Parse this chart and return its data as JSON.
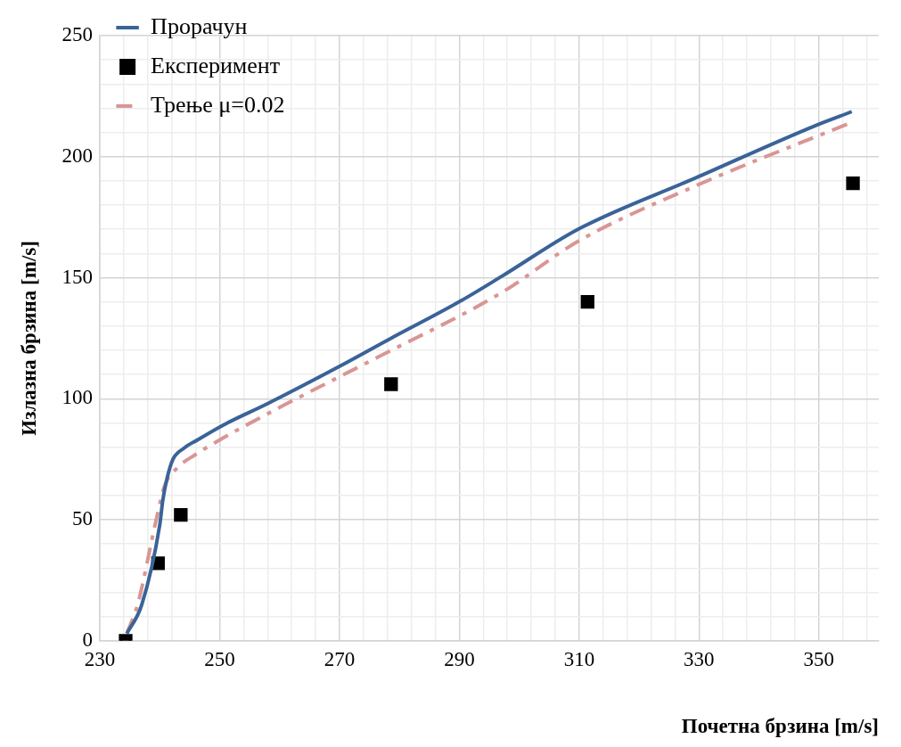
{
  "chart_data": {
    "type": "line",
    "xlabel": "Почетна брзина [m/s]",
    "ylabel": "Излазна брзина [m/s]",
    "xlim": [
      230,
      360
    ],
    "xticks": [
      230,
      {
        "value": 234,
        "label": null
      },
      {
        "value": 238,
        "label": null
      },
      {
        "value": 242,
        "label": null
      },
      {
        "value": 246,
        "label": null
      },
      250,
      {
        "value": 254,
        "label": null
      },
      {
        "value": 258,
        "label": null
      },
      {
        "value": 262,
        "label": null
      },
      {
        "value": 266,
        "label": null
      },
      270,
      {
        "value": 274,
        "label": null
      },
      {
        "value": 278,
        "label": null
      },
      {
        "value": 282,
        "label": null
      },
      {
        "value": 286,
        "label": null
      },
      290,
      {
        "value": 294,
        "label": null
      },
      {
        "value": 298,
        "label": null
      },
      {
        "value": 302,
        "label": null
      },
      {
        "value": 306,
        "label": null
      },
      310,
      {
        "value": 314,
        "label": null
      },
      {
        "value": 318,
        "label": null
      },
      {
        "value": 322,
        "label": null
      },
      {
        "value": 326,
        "label": null
      },
      330,
      {
        "value": 334,
        "label": null
      },
      {
        "value": 338,
        "label": null
      },
      {
        "value": 342,
        "label": null
      },
      {
        "value": 346,
        "label": null
      },
      350,
      {
        "value": 354,
        "label": null
      },
      {
        "value": 358,
        "label": null
      }
    ],
    "ylim": [
      0,
      250
    ],
    "yticks": [
      0,
      {
        "value": 10,
        "label": null
      },
      {
        "value": 20,
        "label": null
      },
      {
        "value": 30,
        "label": null
      },
      {
        "value": 40,
        "label": null
      },
      50,
      {
        "value": 60,
        "label": null
      },
      {
        "value": 70,
        "label": null
      },
      {
        "value": 80,
        "label": null
      },
      {
        "value": 90,
        "label": null
      },
      100,
      {
        "value": 110,
        "label": null
      },
      {
        "value": 120,
        "label": null
      },
      {
        "value": 130,
        "label": null
      },
      {
        "value": 140,
        "label": null
      },
      150,
      {
        "value": 160,
        "label": null
      },
      {
        "value": 170,
        "label": null
      },
      {
        "value": 180,
        "label": null
      },
      {
        "value": 190,
        "label": null
      },
      200,
      {
        "value": 210,
        "label": null
      },
      {
        "value": 220,
        "label": null
      },
      {
        "value": 230,
        "label": null
      },
      {
        "value": 240,
        "label": null
      },
      250
    ],
    "grid": true,
    "legend": "top left",
    "series": [
      {
        "name": "Прорачун",
        "color": "#3a6398",
        "marker": "none",
        "line_style": "solid",
        "x": [
          234.5,
          237,
          240,
          240.5,
          241.2,
          242.2,
          244,
          246.3,
          250.5,
          258,
          269.7,
          278.6,
          290.3,
          297.1,
          309.8,
          329.5,
          349.2,
          355.5
        ],
        "values": [
          3,
          15,
          48,
          58,
          67,
          75,
          79.5,
          83,
          89,
          98,
          113,
          125,
          140.5,
          150.6,
          170,
          191.3,
          212.6,
          218.6
        ]
      },
      {
        "name": "Експеримент",
        "type": "scatter",
        "color": "#000000",
        "marker": "square",
        "x": [
          234.3,
          239.7,
          243.5,
          278.6,
          311.4,
          355.7
        ],
        "values": [
          0,
          32,
          52,
          106,
          140,
          189
        ]
      },
      {
        "name": "Трење μ=0.02",
        "color": "#d99694",
        "marker": "none",
        "line_style": "dashed",
        "x": [
          234.5,
          236.3,
          239.4,
          240.8,
          242.9,
          246,
          250.5,
          260,
          276.5,
          297.1,
          309.8,
          329.5,
          355
        ],
        "values": [
          3,
          15,
          50,
          64,
          71.4,
          77,
          83.7,
          96.4,
          117.3,
          143.9,
          165,
          188,
          213.7
        ]
      }
    ]
  }
}
